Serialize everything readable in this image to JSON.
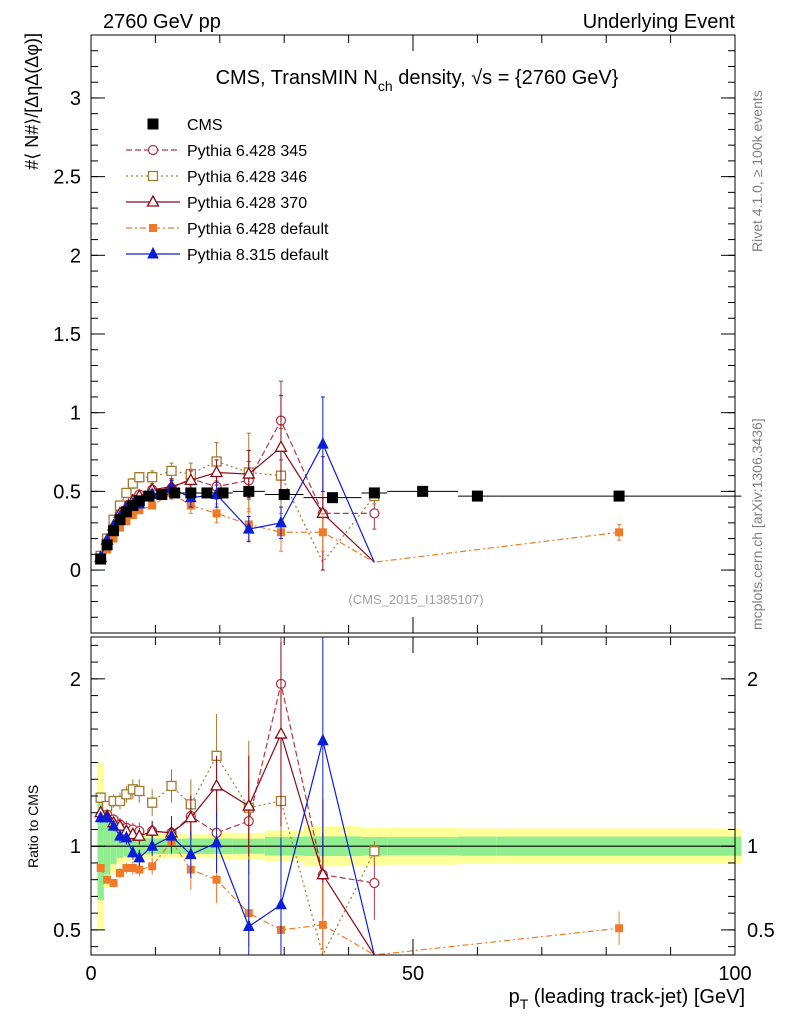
{
  "header": {
    "left": "2760 GeV pp",
    "right": "Underlying Event"
  },
  "side_text": {
    "upper": "Rivet 4.1.0, ≥ 100k events",
    "lower": "mcplots.cern.ch [arXiv:1306.3436]"
  },
  "colors": {
    "cms": "#000000",
    "p345": "#b03848",
    "p346": "#a07a30",
    "p370": "#8b0a14",
    "p6def": "#f07a28",
    "p8def": "#0a1ed8",
    "band_inner": "#90ee90",
    "band_outer": "#ffff99"
  },
  "chart_data": {
    "type": "scatter",
    "title_main": "CMS, TransMIN N",
    "title_sub": "ch",
    "title_rest": " density, √s = {2760 GeV}",
    "watermark": "(CMS_2015_I1385107)",
    "xlabel_main": "p",
    "xlabel_sub": "T",
    "xlabel_rest": " (leading track-jet) [GeV]",
    "ylabel": "#⟨ N#⟩/[ΔηΔ(Δφ)]",
    "ylabel_ratio": "Ratio to CMS",
    "xlim": [
      0,
      100
    ],
    "ylim": [
      -0.4,
      3.4
    ],
    "ylim_ratio": [
      0.35,
      2.25
    ],
    "xticks": [
      {
        "v": 0,
        "label": "0"
      },
      {
        "v": 50,
        "label": "50"
      },
      {
        "v": 100,
        "label": "100"
      }
    ],
    "yticks": [
      {
        "v": 0,
        "label": "0"
      },
      {
        "v": 0.5,
        "label": "0.5"
      },
      {
        "v": 1,
        "label": "1"
      },
      {
        "v": 1.5,
        "label": "1.5"
      },
      {
        "v": 2,
        "label": "2"
      },
      {
        "v": 2.5,
        "label": "2.5"
      },
      {
        "v": 3,
        "label": "3"
      }
    ],
    "ratio_yticks": [
      {
        "v": 0.5,
        "label": "0.5"
      },
      {
        "v": 1,
        "label": "1"
      },
      {
        "v": 2,
        "label": "2"
      }
    ],
    "cms": {
      "name": "CMS",
      "x": [
        1.5,
        2.5,
        3.5,
        4.5,
        5.5,
        6.5,
        7.5,
        9.0,
        11.0,
        13.0,
        15.5,
        18.0,
        20.5,
        24.5,
        30.0,
        37.5,
        44.0,
        51.5,
        60.0,
        82.0
      ],
      "y": [
        0.07,
        0.16,
        0.25,
        0.32,
        0.37,
        0.41,
        0.44,
        0.47,
        0.48,
        0.49,
        0.49,
        0.49,
        0.49,
        0.5,
        0.48,
        0.46,
        0.49,
        0.5,
        0.47,
        0.47
      ],
      "xerr": [
        0.5,
        0.5,
        0.5,
        0.5,
        0.5,
        0.5,
        0.5,
        1.0,
        1.0,
        1.0,
        1.5,
        1.0,
        1.5,
        2.5,
        3.0,
        4.5,
        2.0,
        5.5,
        3.0,
        19.0
      ],
      "band_inner": [
        0.05,
        0.06,
        0.06,
        0.05,
        0.05,
        0.05,
        0.05,
        0.05,
        0.05,
        0.05,
        0.05,
        0.05,
        0.05,
        0.05,
        0.06,
        0.06,
        0.06,
        0.06,
        0.06,
        0.06
      ],
      "band_outer": [
        0.07,
        0.08,
        0.08,
        0.07,
        0.07,
        0.07,
        0.07,
        0.07,
        0.07,
        0.07,
        0.07,
        0.07,
        0.08,
        0.08,
        0.09,
        0.11,
        0.11,
        0.11,
        0.1,
        0.1
      ]
    },
    "series": [
      {
        "name": "Pythia 6.428 345",
        "marker": "circle-open",
        "dash": "6,3",
        "colorKey": "p345",
        "x": [
          1.5,
          2.5,
          3.5,
          4.5,
          5.5,
          6.5,
          7.5,
          9.5,
          12.5,
          15.5,
          19.5,
          24.5,
          29.5,
          36.0,
          44.0
        ],
        "y": [
          0.09,
          0.19,
          0.29,
          0.36,
          0.41,
          0.45,
          0.48,
          0.51,
          0.52,
          0.58,
          0.53,
          0.57,
          0.95,
          0.36,
          0.36
        ],
        "err": [
          0.01,
          0.01,
          0.01,
          0.02,
          0.02,
          0.02,
          0.02,
          0.03,
          0.05,
          0.06,
          0.08,
          0.12,
          0.25,
          0.1,
          0.1
        ],
        "ratio": [
          1.29,
          1.19,
          1.16,
          1.13,
          1.11,
          1.1,
          1.09,
          1.09,
          1.08,
          1.18,
          1.08,
          1.15,
          1.97,
          0.83,
          0.78
        ],
        "ratio_err": [
          0.03,
          0.03,
          0.03,
          0.04,
          0.04,
          0.04,
          0.05,
          0.06,
          0.1,
          0.13,
          0.16,
          0.25,
          0.55,
          0.25,
          0.22
        ]
      },
      {
        "name": "Pythia 6.428 346",
        "marker": "square-open",
        "dash": "2,3",
        "colorKey": "p346",
        "x": [
          1.5,
          2.5,
          3.5,
          4.5,
          5.5,
          6.5,
          7.5,
          9.5,
          12.5,
          15.5,
          19.5,
          24.5,
          29.5,
          36.0,
          44.0
        ],
        "y": [
          0.09,
          0.2,
          0.32,
          0.41,
          0.49,
          0.55,
          0.59,
          0.59,
          0.63,
          0.61,
          0.69,
          0.62,
          0.6,
          0.05,
          0.47
        ],
        "err": [
          0.01,
          0.01,
          0.02,
          0.02,
          0.02,
          0.03,
          0.03,
          0.04,
          0.05,
          0.07,
          0.12,
          0.25,
          0.3,
          0.05,
          0.05
        ],
        "ratio": [
          1.29,
          1.24,
          1.27,
          1.27,
          1.31,
          1.34,
          1.33,
          1.26,
          1.36,
          1.25,
          1.54,
          1.23,
          1.27,
          0.15,
          0.97
        ],
        "ratio_err": [
          0.03,
          0.03,
          0.04,
          0.05,
          0.05,
          0.06,
          0.07,
          0.08,
          0.1,
          0.15,
          0.25,
          0.4,
          0.55,
          0.1,
          0.06
        ]
      },
      {
        "name": "Pythia 6.428 370",
        "marker": "triangle-open",
        "dash": "",
        "colorKey": "p370",
        "x": [
          1.5,
          2.5,
          3.5,
          4.5,
          5.5,
          6.5,
          7.5,
          9.5,
          12.5,
          15.5,
          19.5,
          24.5,
          29.5,
          36.0,
          44.0
        ],
        "y": [
          0.08,
          0.19,
          0.28,
          0.36,
          0.4,
          0.44,
          0.47,
          0.51,
          0.53,
          0.57,
          0.62,
          0.61,
          0.78,
          0.36,
          0.05
        ],
        "err": [
          0.01,
          0.01,
          0.01,
          0.02,
          0.02,
          0.02,
          0.02,
          0.03,
          0.05,
          0.06,
          0.08,
          0.15,
          0.33,
          0.36,
          0.05
        ],
        "ratio": [
          1.2,
          1.18,
          1.14,
          1.12,
          1.09,
          1.07,
          1.06,
          1.09,
          1.08,
          1.17,
          1.36,
          1.24,
          1.67,
          0.83,
          0.1
        ],
        "ratio_err": [
          0.03,
          0.03,
          0.03,
          0.04,
          0.04,
          0.04,
          0.05,
          0.06,
          0.1,
          0.13,
          0.18,
          0.3,
          0.55,
          0.45,
          0.1
        ]
      },
      {
        "name": "Pythia 6.428 default",
        "marker": "square-filled",
        "dash": "6,3,2,3",
        "colorKey": "p6def",
        "x": [
          1.5,
          2.5,
          3.5,
          4.5,
          5.5,
          6.5,
          7.5,
          9.5,
          12.5,
          15.5,
          19.5,
          24.5,
          29.5,
          36.0,
          44.0,
          82.0
        ],
        "y": [
          0.06,
          0.13,
          0.2,
          0.27,
          0.31,
          0.35,
          0.38,
          0.41,
          0.49,
          0.41,
          0.36,
          0.29,
          0.24,
          0.24,
          0.05,
          0.24
        ],
        "err": [
          0.01,
          0.01,
          0.01,
          0.01,
          0.01,
          0.02,
          0.02,
          0.02,
          0.04,
          0.05,
          0.06,
          0.1,
          0.12,
          0.12,
          0.05,
          0.05
        ],
        "ratio": [
          0.87,
          0.8,
          0.78,
          0.84,
          0.87,
          0.87,
          0.86,
          0.88,
          1.03,
          0.86,
          0.8,
          0.6,
          0.5,
          0.53,
          0.1,
          0.51
        ],
        "ratio_err": [
          0.02,
          0.02,
          0.02,
          0.03,
          0.03,
          0.04,
          0.04,
          0.05,
          0.08,
          0.12,
          0.14,
          0.2,
          0.25,
          0.25,
          0.1,
          0.1
        ]
      },
      {
        "name": "Pythia 8.315 default",
        "marker": "triangle-filled",
        "dash": "",
        "colorKey": "p8def",
        "x": [
          1.5,
          2.5,
          3.5,
          4.5,
          5.5,
          6.5,
          7.5,
          9.5,
          12.5,
          15.5,
          19.5,
          24.5,
          29.5,
          36.0,
          44.0
        ],
        "y": [
          0.08,
          0.19,
          0.28,
          0.34,
          0.39,
          0.42,
          0.42,
          0.48,
          0.52,
          0.46,
          0.48,
          0.26,
          0.3,
          0.8,
          0.05
        ],
        "err": [
          0.01,
          0.01,
          0.01,
          0.02,
          0.02,
          0.02,
          0.02,
          0.03,
          0.05,
          0.06,
          0.08,
          0.08,
          0.1,
          0.3,
          0.05
        ],
        "ratio": [
          1.17,
          1.17,
          1.12,
          1.06,
          1.05,
          0.96,
          0.93,
          1.0,
          1.06,
          0.95,
          1.02,
          0.52,
          0.65,
          1.63,
          0.1
        ],
        "ratio_err": [
          0.03,
          0.03,
          0.03,
          0.04,
          0.04,
          0.04,
          0.05,
          0.06,
          0.1,
          0.14,
          0.18,
          0.4,
          0.4,
          0.7,
          0.1
        ]
      }
    ]
  }
}
